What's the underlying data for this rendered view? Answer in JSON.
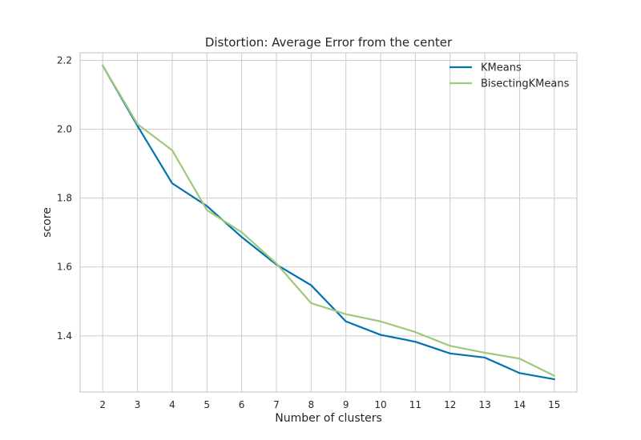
{
  "chart_data": {
    "type": "line",
    "title": "Distortion: Average Error from the center",
    "xlabel": "Number of clusters",
    "ylabel": "score",
    "x": [
      2,
      3,
      4,
      5,
      6,
      7,
      8,
      9,
      10,
      11,
      12,
      13,
      14,
      15
    ],
    "xlim": [
      1.35,
      15.65
    ],
    "ylim": [
      1.237,
      2.222
    ],
    "yticks": [
      1.4,
      1.6,
      1.8,
      2.0,
      2.2
    ],
    "ytick_labels": [
      "1.4",
      "1.6",
      "1.8",
      "2.0",
      "2.2"
    ],
    "grid": true,
    "legend_position": "top-right",
    "series": [
      {
        "name": "KMeans",
        "color": "#0072b2",
        "values": [
          2.185,
          2.01,
          1.843,
          1.777,
          1.687,
          1.607,
          1.547,
          1.442,
          1.403,
          1.383,
          1.349,
          1.337,
          1.292,
          1.274
        ]
      },
      {
        "name": "BisectingKMeans",
        "color": "#9fc97a",
        "values": [
          2.185,
          2.015,
          1.939,
          1.765,
          1.701,
          1.61,
          1.495,
          1.463,
          1.442,
          1.411,
          1.371,
          1.351,
          1.334,
          1.284
        ]
      }
    ]
  }
}
